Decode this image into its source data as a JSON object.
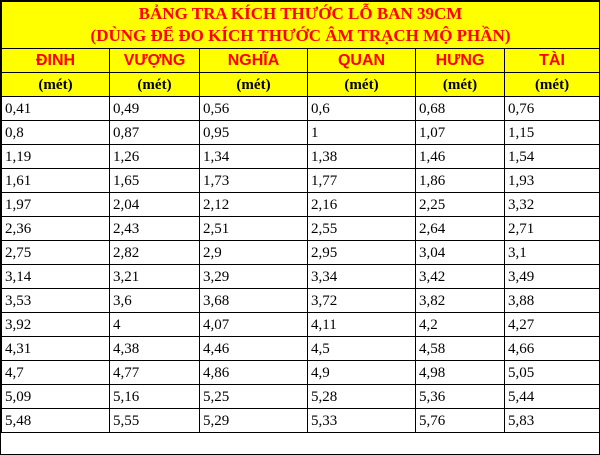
{
  "table": {
    "title_line1": "BẢNG TRA KÍCH THƯỚC LỖ BAN 39CM",
    "title_line2": "(DÙNG ĐỂ ĐO KÍCH THƯỚC ÂM TRẠCH MỘ PHẦN)",
    "columns": [
      {
        "name": "ĐINH",
        "unit": "(mét)"
      },
      {
        "name": "VƯỢNG",
        "unit": "(mét)"
      },
      {
        "name": "NGHĨA",
        "unit": "(mét)"
      },
      {
        "name": "QUAN",
        "unit": "(mét)"
      },
      {
        "name": "HƯNG",
        "unit": "(mét)"
      },
      {
        "name": "TÀI",
        "unit": "(mét)"
      }
    ],
    "rows": [
      [
        "0,41",
        "0,49",
        "0,56",
        "0,6",
        "0,68",
        "0,76"
      ],
      [
        "0,8",
        "0,87",
        "0,95",
        "1",
        "1,07",
        "1,15"
      ],
      [
        "1,19",
        "1,26",
        "1,34",
        "1,38",
        "1,46",
        "1,54"
      ],
      [
        "1,61",
        "1,65",
        "1,73",
        "1,77",
        "1,86",
        "1,93"
      ],
      [
        "1,97",
        "2,04",
        "2,12",
        "2,16",
        "2,25",
        "3,32"
      ],
      [
        "2,36",
        "2,43",
        "2,51",
        "2,55",
        "2,64",
        "2,71"
      ],
      [
        "2,75",
        "2,82",
        "2,9",
        "2,95",
        "3,04",
        "3,1"
      ],
      [
        "3,14",
        "3,21",
        "3,29",
        "3,34",
        "3,42",
        "3,49"
      ],
      [
        "3,53",
        "3,6",
        "3,68",
        "3,72",
        "3,82",
        "3,88"
      ],
      [
        "3,92",
        "4",
        "4,07",
        "4,11",
        "4,2",
        "4,27"
      ],
      [
        "4,31",
        "4,38",
        "4,46",
        "4,5",
        "4,58",
        "4,66"
      ],
      [
        "4,7",
        "4,77",
        "4,86",
        "4,9",
        "4,98",
        "5,05"
      ],
      [
        "5,09",
        "5,16",
        "5,25",
        "5,28",
        "5,36",
        "5,44"
      ],
      [
        "5,48",
        "5,55",
        "5,29",
        "5,33",
        "5,76",
        "5,83"
      ]
    ]
  },
  "colors": {
    "header_background": "#ffff00",
    "title_text": "#ff0000",
    "header_name_text": "#ff0000",
    "grid_line": "#000000"
  }
}
